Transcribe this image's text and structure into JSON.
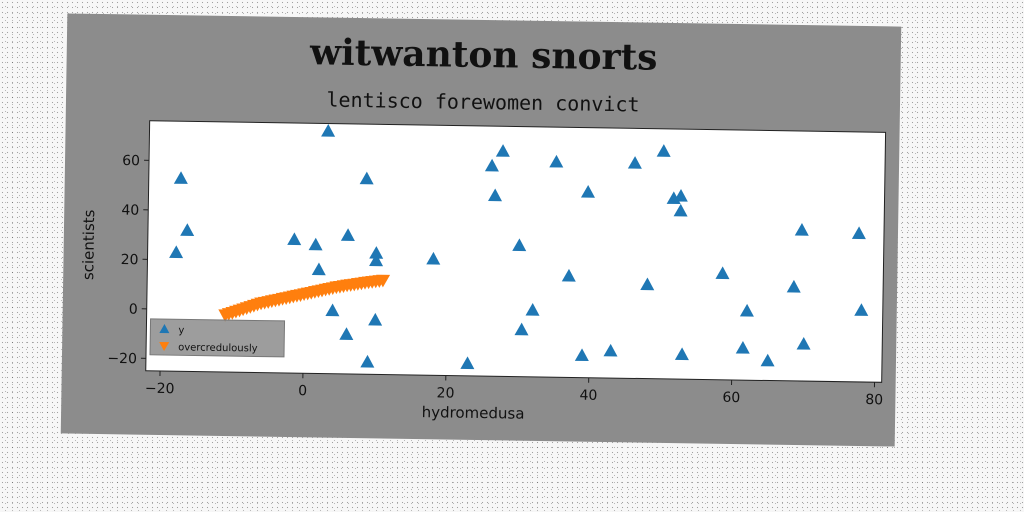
{
  "chart_data": {
    "type": "scatter",
    "title": "witwanton snorts",
    "subtitle": "lentisco forewomen convict",
    "xlabel": "hydromedusa",
    "ylabel": "scientists",
    "xlim": [
      -22,
      81
    ],
    "ylim": [
      -25,
      76
    ],
    "xticks": [
      -20,
      0,
      20,
      40,
      60,
      80
    ],
    "yticks": [
      -20,
      0,
      20,
      40,
      60
    ],
    "legend_position": "lower-left",
    "series": [
      {
        "name": "y",
        "marker": "triangle-up",
        "color": "#1f77b4",
        "points": [
          [
            -18,
            23
          ],
          [
            -17.5,
            53
          ],
          [
            -16.5,
            32
          ],
          [
            -1.5,
            29
          ],
          [
            1.5,
            27
          ],
          [
            2,
            17
          ],
          [
            3,
            73
          ],
          [
            4,
            0.5
          ],
          [
            6,
            31
          ],
          [
            6,
            -9
          ],
          [
            8.5,
            54
          ],
          [
            9,
            -20
          ],
          [
            10,
            24
          ],
          [
            10,
            21
          ],
          [
            10,
            -3
          ],
          [
            18,
            22
          ],
          [
            23,
            -20
          ],
          [
            26,
            60
          ],
          [
            26.5,
            48
          ],
          [
            27.5,
            66
          ],
          [
            30,
            28
          ],
          [
            30.5,
            -6
          ],
          [
            32,
            2
          ],
          [
            35,
            62
          ],
          [
            37,
            16
          ],
          [
            39,
            -16
          ],
          [
            39.5,
            50
          ],
          [
            43,
            -14
          ],
          [
            46,
            62
          ],
          [
            48,
            13
          ],
          [
            50,
            67
          ],
          [
            51.5,
            48
          ],
          [
            52.5,
            49
          ],
          [
            52.5,
            43
          ],
          [
            53,
            -15
          ],
          [
            58.5,
            18
          ],
          [
            61.5,
            -12
          ],
          [
            62,
            3
          ],
          [
            65,
            -17
          ],
          [
            68.5,
            13
          ],
          [
            69.5,
            36
          ],
          [
            70,
            -10
          ],
          [
            77.5,
            35
          ],
          [
            78,
            4
          ]
        ]
      },
      {
        "name": "overcredulously",
        "marker": "triangle-down",
        "color": "#ff7f0e",
        "points": [
          [
            -11,
            -2
          ],
          [
            -10.5,
            -1.5
          ],
          [
            -10,
            -1
          ],
          [
            -9.5,
            -0.5
          ],
          [
            -9,
            0
          ],
          [
            -8.5,
            0.5
          ],
          [
            -8,
            1
          ],
          [
            -7.5,
            1.5
          ],
          [
            -7,
            2
          ],
          [
            -6.5,
            2.5
          ],
          [
            -6,
            3
          ],
          [
            -5.5,
            3.3
          ],
          [
            -5,
            3.6
          ],
          [
            -4.5,
            4
          ],
          [
            -4,
            4.3
          ],
          [
            -3.5,
            4.6
          ],
          [
            -3,
            5
          ],
          [
            -2.5,
            5.3
          ],
          [
            -2,
            5.6
          ],
          [
            -1.5,
            6
          ],
          [
            -1,
            6.3
          ],
          [
            -0.5,
            6.6
          ],
          [
            0,
            7
          ],
          [
            0.5,
            7.3
          ],
          [
            1,
            7.6
          ],
          [
            1.5,
            8
          ],
          [
            2,
            8.3
          ],
          [
            2.5,
            8.6
          ],
          [
            3,
            9
          ],
          [
            3.5,
            9.3
          ],
          [
            4,
            9.6
          ],
          [
            4.5,
            10
          ],
          [
            5,
            10.2
          ],
          [
            5.5,
            10.5
          ],
          [
            6,
            10.8
          ],
          [
            6.5,
            11
          ],
          [
            7,
            11.2
          ],
          [
            7.5,
            11.5
          ],
          [
            8,
            11.7
          ],
          [
            8.5,
            12
          ],
          [
            9,
            12.2
          ],
          [
            9.5,
            12.4
          ],
          [
            10,
            12.6
          ],
          [
            10.5,
            12.8
          ],
          [
            11,
            13
          ]
        ]
      }
    ]
  }
}
